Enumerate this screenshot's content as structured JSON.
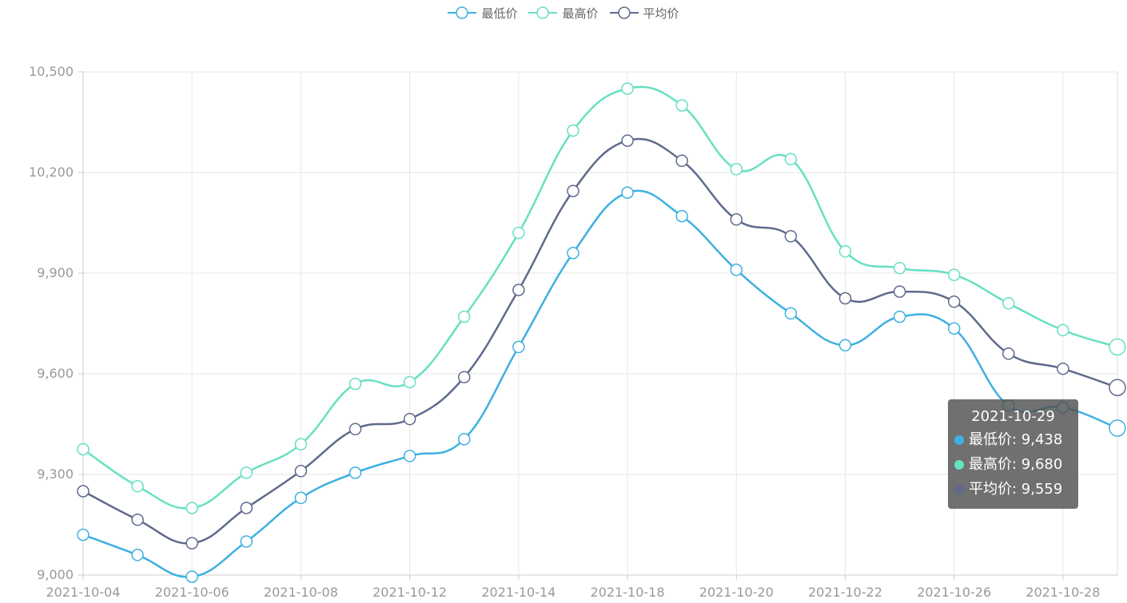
{
  "chart_data": {
    "type": "line",
    "smooth": true,
    "x": [
      "2021-10-04",
      "2021-10-05",
      "2021-10-06",
      "2021-10-07",
      "2021-10-08",
      "2021-10-09",
      "2021-10-12",
      "2021-10-13",
      "2021-10-14",
      "2021-10-15",
      "2021-10-18",
      "2021-10-19",
      "2021-10-20",
      "2021-10-21",
      "2021-10-22",
      "2021-10-25",
      "2021-10-26",
      "2021-10-27",
      "2021-10-28",
      "2021-10-29"
    ],
    "x_tick_labels": [
      "2021-10-04",
      "2021-10-06",
      "2021-10-08",
      "2021-10-12",
      "2021-10-14",
      "2021-10-18",
      "2021-10-20",
      "2021-10-22",
      "2021-10-26",
      "2021-10-28"
    ],
    "y_tick_labels": [
      "9,000",
      "9,300",
      "9,600",
      "9,900",
      "10,200",
      "10,500"
    ],
    "ylim": [
      9000,
      10500
    ],
    "grid": true,
    "legend_position": "top-center",
    "series": [
      {
        "name": "最低价",
        "color": "#3eb0e0",
        "values": [
          9120,
          9060,
          8995,
          9100,
          9230,
          9305,
          9355,
          9405,
          9680,
          9960,
          10140,
          10070,
          9910,
          9780,
          9685,
          9770,
          9735,
          9505,
          9500,
          9438
        ]
      },
      {
        "name": "最高价",
        "color": "#67e0c3",
        "values": [
          9375,
          9265,
          9200,
          9305,
          9390,
          9570,
          9575,
          9770,
          10020,
          10325,
          10450,
          10400,
          10210,
          10240,
          9965,
          9915,
          9895,
          9810,
          9730,
          9680
        ]
      },
      {
        "name": "平均价",
        "color": "#5f6a8c",
        "values": [
          9250,
          9165,
          9095,
          9200,
          9310,
          9435,
          9465,
          9590,
          9850,
          10145,
          10295,
          10235,
          10060,
          10010,
          9825,
          9845,
          9815,
          9660,
          9615,
          9559
        ]
      }
    ],
    "tooltip": {
      "title": "2021-10-29",
      "rows": [
        "最低价: 9,438",
        "最高价: 9,680",
        "平均价: 9,559"
      ]
    }
  }
}
